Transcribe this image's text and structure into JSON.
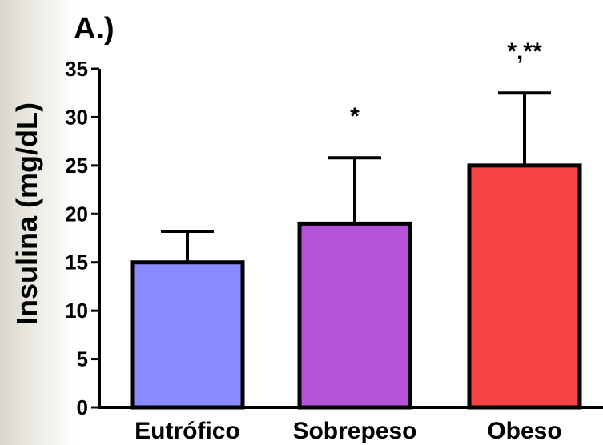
{
  "chart_data": {
    "type": "bar",
    "panel_label": "A.)",
    "title": "",
    "xlabel": "",
    "ylabel": "Insulina (mg/dL)",
    "ylim": [
      0,
      35
    ],
    "yticks": [
      "0",
      "5",
      "10",
      "15",
      "20",
      "25",
      "30",
      "35"
    ],
    "categories": [
      "Eutrófico",
      "Sobrepeso",
      "Obeso"
    ],
    "values": [
      15.0,
      19.0,
      25.0
    ],
    "errors": [
      3.2,
      6.8,
      7.5
    ],
    "annotations": [
      "",
      "*",
      "*,**"
    ],
    "colors": [
      "#8a8aff",
      "#b452d9",
      "#f54343"
    ],
    "grid": false,
    "legend": "none"
  }
}
